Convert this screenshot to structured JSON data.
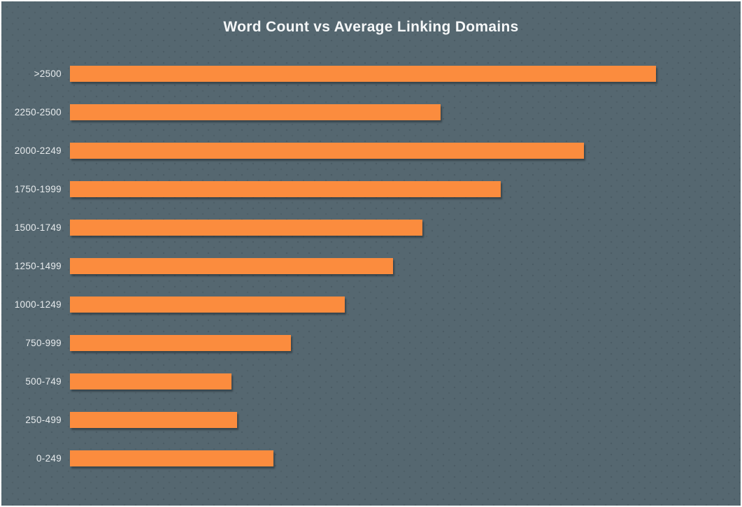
{
  "page": {
    "title": "Word Count vs Average Linking Domains"
  },
  "colors": {
    "background": "#556770",
    "bar": "#FB8C3E",
    "title_text": "#F5F7F8",
    "label_text": "#E7EBED",
    "border": "#FFFFFF"
  },
  "chart_data": {
    "type": "bar",
    "orientation": "horizontal",
    "title": "Word Count vs Average Linking Domains",
    "categories": [
      ">2500",
      "2250-2500",
      "2000-2249",
      "1750-1999",
      "1500-1749",
      "1250-1499",
      "1000-1249",
      "750-999",
      "500-749",
      "250-499",
      "0-249"
    ],
    "values": [
      9.8,
      6.2,
      8.6,
      7.2,
      5.9,
      5.4,
      4.6,
      3.7,
      2.7,
      2.8,
      3.4
    ],
    "series_name": "Average Linking Domains",
    "xlabel": "",
    "ylabel": "",
    "xlim": [
      0,
      10
    ],
    "grid": false,
    "legend": "none",
    "value_axis_visible": false
  }
}
